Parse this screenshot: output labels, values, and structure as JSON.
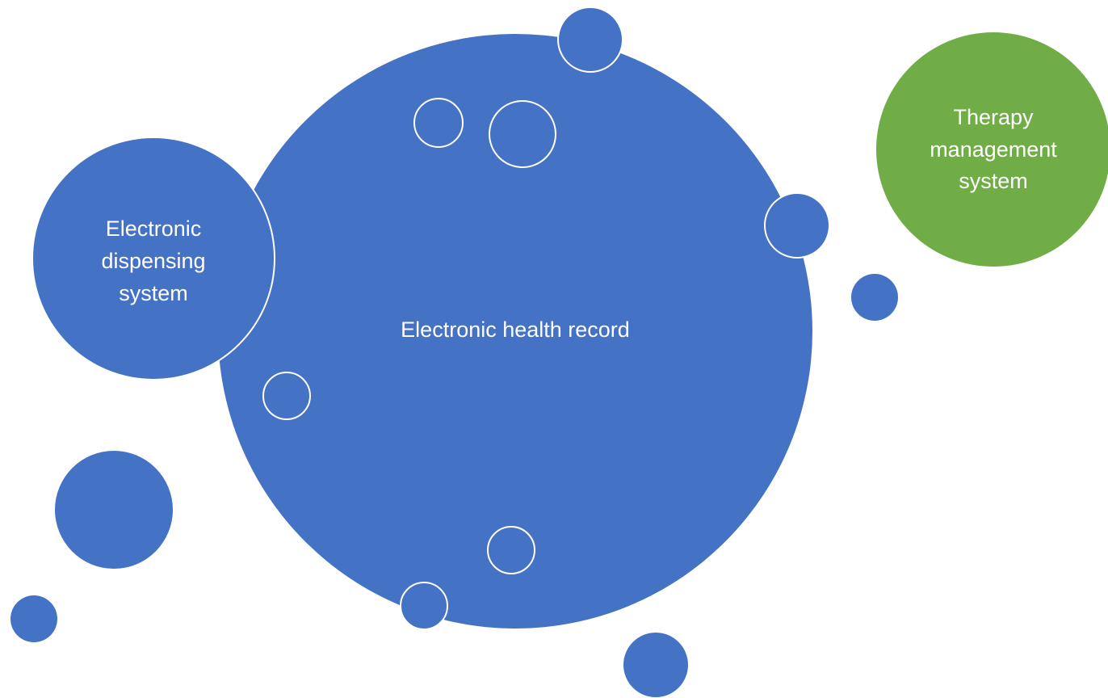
{
  "colors": {
    "blue": "#4472C4",
    "green": "#70AD47",
    "outline": "#ffffff"
  },
  "labels": {
    "main": "Electronic health record",
    "left_line1": "Electronic",
    "left_line2": "dispensing",
    "left_line3": "system",
    "right_line1": "Therapy",
    "right_line2": "management",
    "right_line3": "system"
  }
}
